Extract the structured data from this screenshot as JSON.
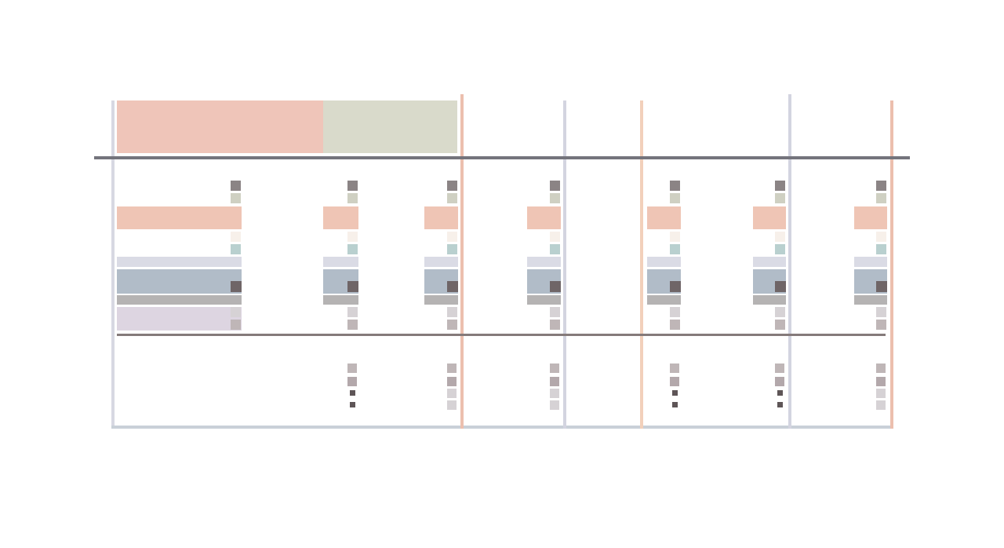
{
  "colors": {
    "background": "#ffffff",
    "frame": "#d7d8e2",
    "frame_bottom": "#c9d0d8",
    "header_divider": "#74747c",
    "body_divider": "#857a7a",
    "header_salmon": "#efc5b9",
    "header_sage": "#d9dacb",
    "bar_salmon": "#efc5b5",
    "bar_lavender": "#dadbe5",
    "bar_steel": "#b1bcc8",
    "bar_gray": "#b5b3b3",
    "bar_mauve": "#ddd5e1",
    "square_dark": "#8b8485",
    "square_taupe": "#b3a8ab",
    "square_sage": "#cfd0c2",
    "square_cream": "#f7f0ea",
    "square_teal": "#b9d0cf",
    "square_charcoal": "#6f6567",
    "square_light": "#d6d2d5",
    "square_mid": "#bfb6b7",
    "dot_dark": "#5e5557",
    "vline_salmon": "#ecbfae",
    "vline_lavender": "#d3d4e0",
    "vline_peach": "#f2d0bb"
  },
  "icons": {
    "row_marker": "square-swatch",
    "column_divider": "vertical-rule",
    "summary_marker": "small-dot"
  },
  "layout_model": {
    "columns": 8,
    "header_segments": [
      "salmon",
      "sage"
    ],
    "body_bands": [
      "salmon",
      "lavender",
      "steel",
      "gray",
      "mauve"
    ],
    "vertical_dividers": [
      "salmon",
      "lavender",
      "peach",
      "lavender",
      "salmon"
    ]
  }
}
